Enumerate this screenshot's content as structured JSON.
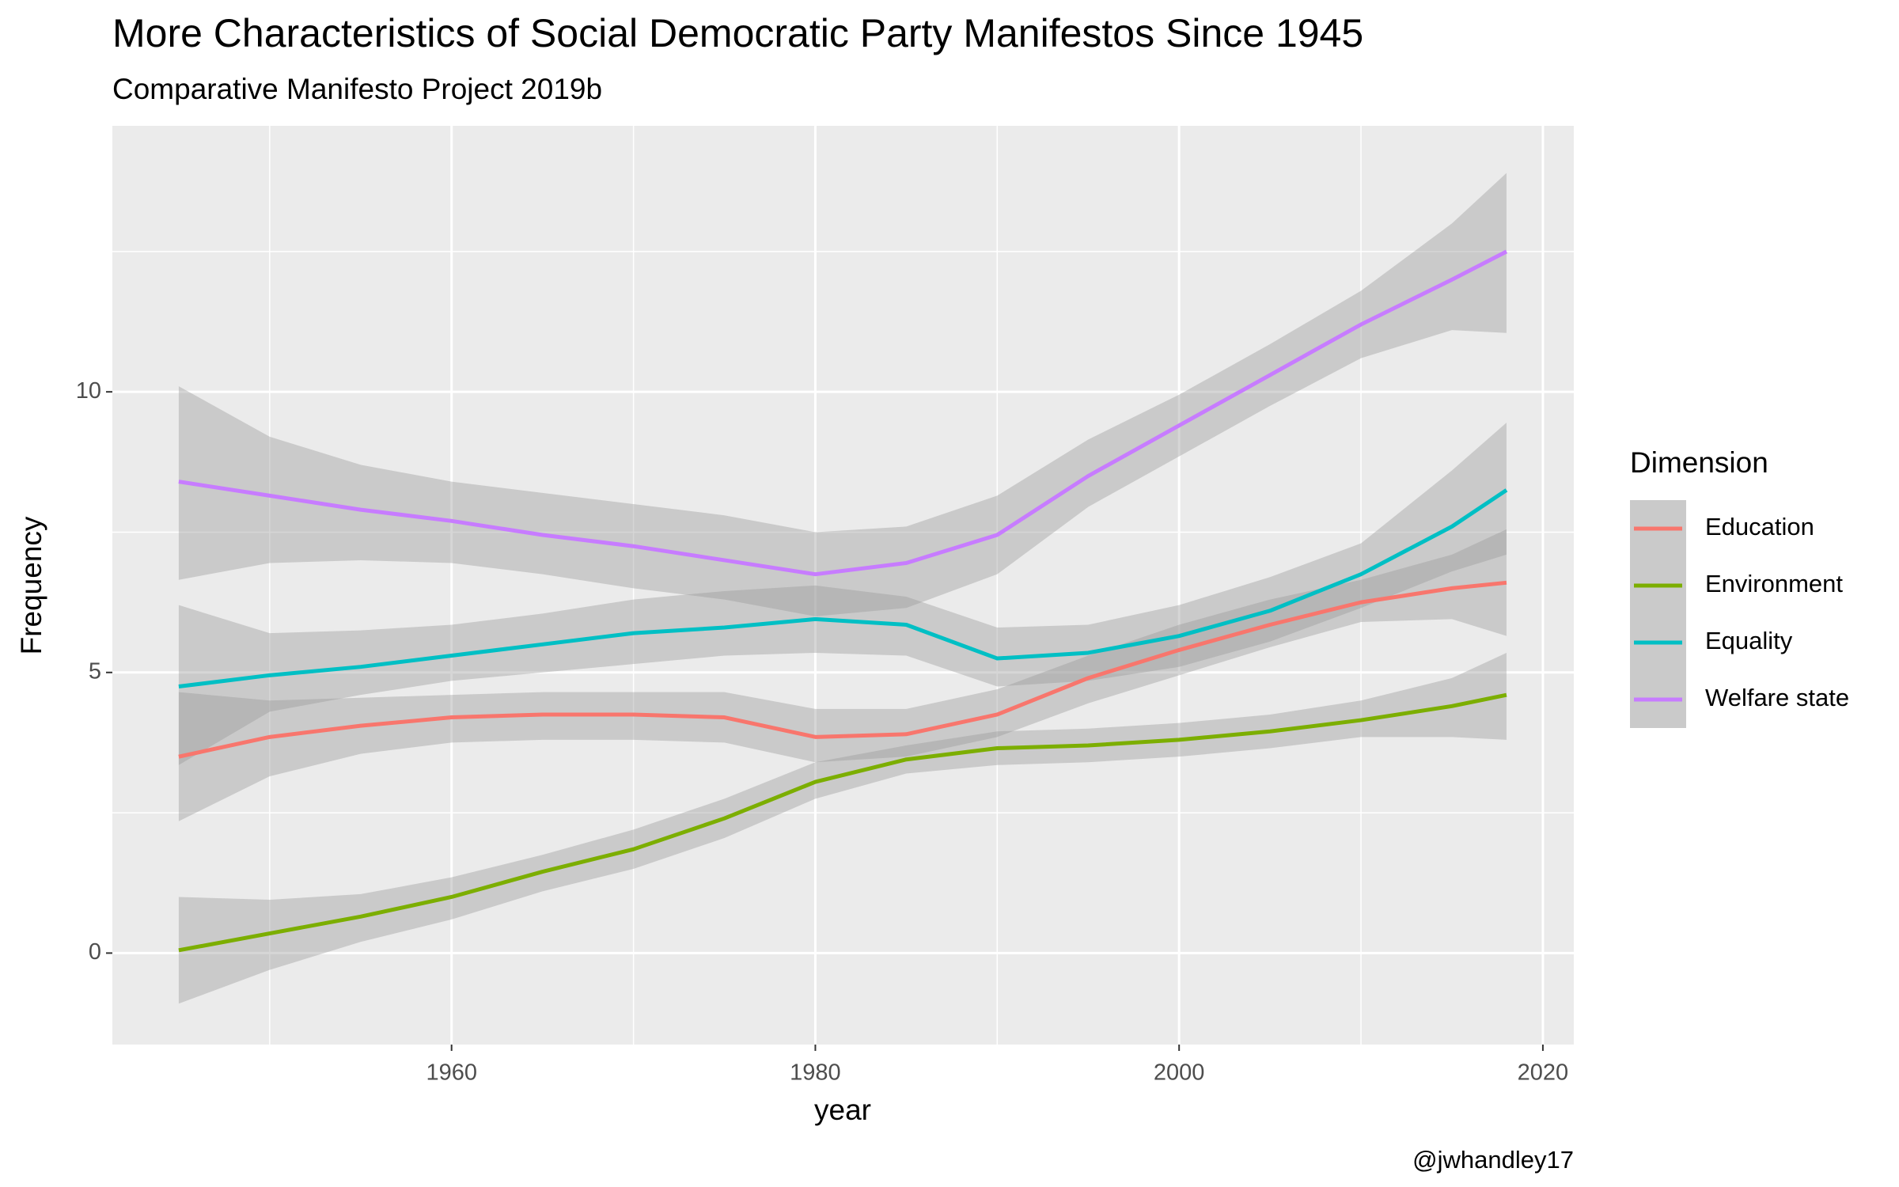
{
  "chart_data": {
    "type": "smooth-line",
    "title": "More Characteristics of Social Democratic Party Manifestos Since 1945",
    "subtitle": "Comparative Manifesto Project 2019b",
    "x_label": "year",
    "y_label": "Frequency",
    "caption": "@jwhandley17",
    "legend_title": "Dimension",
    "legend_position": "right",
    "grid": true,
    "band_color": "#999999",
    "x": [
      1945,
      1950,
      1955,
      1960,
      1965,
      1970,
      1975,
      1980,
      1985,
      1990,
      1995,
      2000,
      2005,
      2010,
      2015,
      2018
    ],
    "xlim": [
      1941.35,
      2021.7
    ],
    "xticks": [
      1960,
      1980,
      2000,
      2020
    ],
    "x_minor_grid": [
      1950,
      1970,
      1990,
      2010
    ],
    "ylim": [
      -1.63,
      14.74
    ],
    "yticks": [
      0,
      5,
      10
    ],
    "y_minor_grid": [
      2.5,
      7.5,
      12.5
    ],
    "series": [
      {
        "name": "Education",
        "color": "#F8766D",
        "values": [
          3.5,
          3.85,
          4.05,
          4.2,
          4.25,
          4.25,
          4.2,
          3.85,
          3.9,
          4.25,
          4.9,
          5.4,
          5.85,
          6.25,
          6.5,
          6.6
        ],
        "lower": [
          2.35,
          3.15,
          3.55,
          3.75,
          3.8,
          3.8,
          3.75,
          3.4,
          3.5,
          3.85,
          4.45,
          4.95,
          5.45,
          5.9,
          5.95,
          5.65
        ],
        "upper": [
          4.65,
          4.5,
          4.55,
          4.6,
          4.65,
          4.65,
          4.65,
          4.35,
          4.35,
          4.7,
          5.3,
          5.85,
          6.3,
          6.65,
          7.1,
          7.55
        ]
      },
      {
        "name": "Environment",
        "color": "#7CAE00",
        "values": [
          0.05,
          0.35,
          0.65,
          1.0,
          1.45,
          1.85,
          2.4,
          3.05,
          3.45,
          3.65,
          3.7,
          3.8,
          3.95,
          4.15,
          4.4,
          4.6
        ],
        "lower": [
          -0.9,
          -0.3,
          0.2,
          0.6,
          1.1,
          1.5,
          2.05,
          2.75,
          3.2,
          3.35,
          3.4,
          3.5,
          3.65,
          3.85,
          3.85,
          3.8
        ],
        "upper": [
          1.0,
          0.95,
          1.05,
          1.35,
          1.75,
          2.2,
          2.75,
          3.4,
          3.7,
          3.95,
          4.0,
          4.1,
          4.25,
          4.5,
          4.9,
          5.35
        ]
      },
      {
        "name": "Equality",
        "color": "#00BFC4",
        "values": [
          4.75,
          4.95,
          5.1,
          5.3,
          5.5,
          5.7,
          5.8,
          5.95,
          5.85,
          5.25,
          5.35,
          5.65,
          6.1,
          6.75,
          7.6,
          8.25
        ],
        "lower": [
          3.35,
          4.3,
          4.6,
          4.85,
          5.0,
          5.15,
          5.3,
          5.35,
          5.3,
          4.75,
          4.85,
          5.1,
          5.55,
          6.15,
          6.8,
          7.1
        ],
        "upper": [
          6.2,
          5.7,
          5.75,
          5.85,
          6.05,
          6.3,
          6.45,
          6.55,
          6.35,
          5.8,
          5.85,
          6.2,
          6.7,
          7.3,
          8.6,
          9.45
        ]
      },
      {
        "name": "Welfare state",
        "color": "#C77CFF",
        "values": [
          8.4,
          8.15,
          7.9,
          7.7,
          7.45,
          7.25,
          7.0,
          6.75,
          6.95,
          7.45,
          8.5,
          9.4,
          10.3,
          11.2,
          12.0,
          12.5
        ],
        "lower": [
          6.65,
          6.95,
          7.0,
          6.95,
          6.75,
          6.5,
          6.3,
          6.0,
          6.15,
          6.75,
          7.95,
          8.85,
          9.75,
          10.6,
          11.1,
          11.05
        ],
        "upper": [
          10.1,
          9.2,
          8.7,
          8.4,
          8.2,
          8.0,
          7.8,
          7.5,
          7.6,
          8.15,
          9.15,
          9.95,
          10.85,
          11.8,
          13.0,
          13.9
        ]
      }
    ]
  }
}
